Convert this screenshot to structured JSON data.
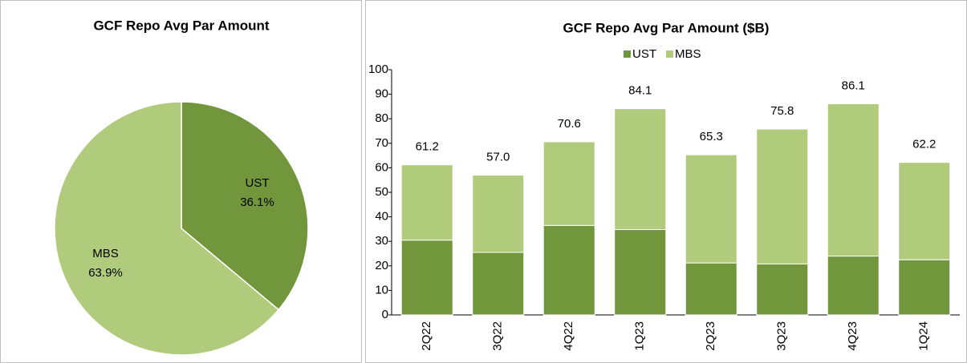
{
  "chart_data": [
    {
      "type": "pie",
      "title": "GCF Repo Avg Par Amount",
      "categories": [
        "UST",
        "MBS"
      ],
      "values": [
        36.1,
        63.9
      ],
      "value_labels": [
        "36.1%",
        "63.9%"
      ],
      "colors": [
        "#71963c",
        "#b0cb7c"
      ]
    },
    {
      "type": "stacked_bar",
      "title": "GCF Repo Avg Par Amount ($B)",
      "categories": [
        "2Q22",
        "3Q22",
        "4Q22",
        "1Q23",
        "2Q23",
        "3Q23",
        "4Q23",
        "1Q24"
      ],
      "series": [
        {
          "name": "UST",
          "color": "#71963c",
          "values": [
            30.5,
            25.5,
            36.5,
            34.8,
            21.2,
            20.8,
            24.0,
            22.5
          ]
        },
        {
          "name": "MBS",
          "color": "#b0cb7c",
          "values": [
            30.7,
            31.5,
            34.1,
            49.3,
            44.1,
            55.0,
            62.1,
            39.7
          ]
        }
      ],
      "totals": [
        61.2,
        57.0,
        70.6,
        84.1,
        65.3,
        75.8,
        86.1,
        62.2
      ],
      "total_labels": [
        "61.2",
        "57.0",
        "70.6",
        "84.1",
        "65.3",
        "75.8",
        "86.1",
        "62.2"
      ],
      "ylim": [
        0,
        100
      ],
      "yticks": [
        0,
        10,
        20,
        30,
        40,
        50,
        60,
        70,
        80,
        90,
        100
      ],
      "legend": "top"
    }
  ]
}
